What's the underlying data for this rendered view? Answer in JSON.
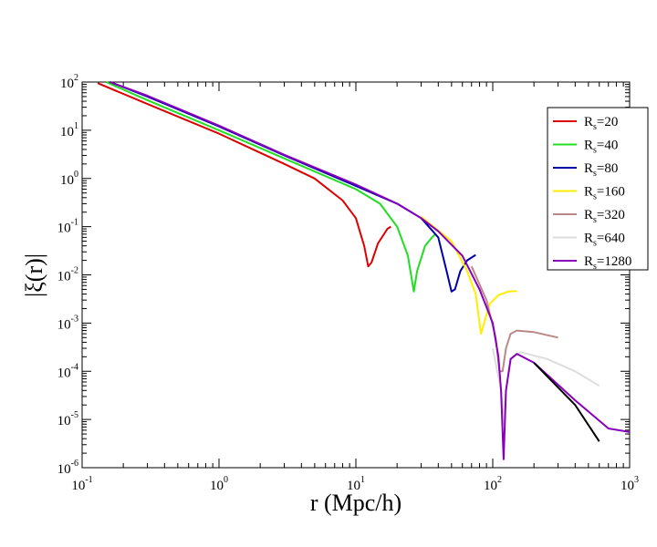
{
  "chart_data": {
    "type": "line",
    "title": "",
    "xlabel": "r (Mpc/h)",
    "ylabel": "|ξ(r)|",
    "xscale": "log",
    "yscale": "log",
    "xlim": [
      0.1,
      1000
    ],
    "ylim": [
      1e-06,
      100
    ],
    "x_ticks": [
      {
        "base": "10",
        "exp": "-1",
        "value": 0.1
      },
      {
        "base": "10",
        "exp": "0",
        "value": 1
      },
      {
        "base": "10",
        "exp": "1",
        "value": 10
      },
      {
        "base": "10",
        "exp": "2",
        "value": 100
      },
      {
        "base": "10",
        "exp": "3",
        "value": 1000
      }
    ],
    "y_ticks": [
      {
        "base": "10",
        "exp": "-6",
        "value": 1e-06
      },
      {
        "base": "10",
        "exp": "-5",
        "value": 1e-05
      },
      {
        "base": "10",
        "exp": "-4",
        "value": 0.0001
      },
      {
        "base": "10",
        "exp": "-3",
        "value": 0.001
      },
      {
        "base": "10",
        "exp": "-2",
        "value": 0.01
      },
      {
        "base": "10",
        "exp": "-1",
        "value": 0.1
      },
      {
        "base": "10",
        "exp": "0",
        "value": 1
      },
      {
        "base": "10",
        "exp": "1",
        "value": 10
      },
      {
        "base": "10",
        "exp": "2",
        "value": 100
      }
    ],
    "legend_position": "top-right",
    "series": [
      {
        "name": "R_s=20",
        "label_main": "R",
        "label_sub": "s",
        "label_rest": "=20",
        "color": "#dd0000",
        "points": [
          [
            0.13,
            95
          ],
          [
            0.3,
            35
          ],
          [
            1,
            8.5
          ],
          [
            3,
            2
          ],
          [
            5,
            1
          ],
          [
            8,
            0.35
          ],
          [
            10,
            0.15
          ],
          [
            11.5,
            0.04
          ],
          [
            12.3,
            0.015
          ],
          [
            13,
            0.018
          ],
          [
            14.5,
            0.045
          ],
          [
            17,
            0.09
          ],
          [
            18,
            0.1
          ]
        ]
      },
      {
        "name": "R_s=40",
        "label_main": "R",
        "label_sub": "s",
        "label_rest": "=40",
        "color": "#22dd22",
        "points": [
          [
            0.15,
            100
          ],
          [
            0.3,
            42
          ],
          [
            1,
            10
          ],
          [
            3,
            2.6
          ],
          [
            10,
            0.6
          ],
          [
            15,
            0.3
          ],
          [
            20,
            0.1
          ],
          [
            24,
            0.025
          ],
          [
            26.5,
            0.0045
          ],
          [
            28,
            0.012
          ],
          [
            32,
            0.04
          ],
          [
            36,
            0.06
          ],
          [
            38,
            0.07
          ]
        ]
      },
      {
        "name": "R_s=80",
        "label_main": "R",
        "label_sub": "s",
        "label_rest": "=80",
        "color": "#0000aa",
        "points": [
          [
            0.16,
            100
          ],
          [
            0.3,
            50
          ],
          [
            1,
            12
          ],
          [
            3,
            3
          ],
          [
            10,
            0.7
          ],
          [
            20,
            0.3
          ],
          [
            30,
            0.15
          ],
          [
            40,
            0.06
          ],
          [
            46,
            0.012
          ],
          [
            50,
            0.0045
          ],
          [
            53,
            0.005
          ],
          [
            58,
            0.012
          ],
          [
            65,
            0.02
          ],
          [
            75,
            0.026
          ]
        ]
      },
      {
        "name": "R_s=160",
        "label_main": "R",
        "label_sub": "s",
        "label_rest": "=160",
        "color": "#ffee00",
        "points": [
          [
            30,
            0.16
          ],
          [
            50,
            0.05
          ],
          [
            65,
            0.012
          ],
          [
            75,
            0.004
          ],
          [
            82,
            0.0006
          ],
          [
            88,
            0.0012
          ],
          [
            95,
            0.0025
          ],
          [
            110,
            0.0038
          ],
          [
            130,
            0.0045
          ],
          [
            150,
            0.0046
          ]
        ]
      },
      {
        "name": "R_s=320",
        "label_main": "R",
        "label_sub": "s",
        "label_rest": "=320",
        "color": "#bb8888",
        "points": [
          [
            70,
            0.015
          ],
          [
            90,
            0.003
          ],
          [
            105,
            0.0005
          ],
          [
            112,
            0.0001
          ],
          [
            118,
            0.0001
          ],
          [
            125,
            0.0003
          ],
          [
            135,
            0.0006
          ],
          [
            150,
            0.0007
          ],
          [
            200,
            0.00065
          ],
          [
            300,
            0.0005
          ]
        ]
      },
      {
        "name": "R_s=640",
        "label_main": "R",
        "label_sub": "s",
        "label_rest": "=640",
        "color": "#dddddd",
        "points": [
          [
            100,
            0.0003
          ],
          [
            115,
            4e-05
          ],
          [
            120,
            8e-06
          ],
          [
            125,
            4e-05
          ],
          [
            135,
            0.00018
          ],
          [
            160,
            0.00025
          ],
          [
            250,
            0.00018
          ],
          [
            400,
            0.0001
          ],
          [
            600,
            5e-05
          ]
        ]
      },
      {
        "name": "R_s=1280",
        "label_main": "R",
        "label_sub": "s",
        "label_rest": "=1280",
        "color": "#8800bb",
        "points": [
          [
            0.16,
            100
          ],
          [
            0.3,
            52
          ],
          [
            1,
            12.5
          ],
          [
            3,
            3.1
          ],
          [
            10,
            0.75
          ],
          [
            20,
            0.3
          ],
          [
            30,
            0.15
          ],
          [
            40,
            0.08
          ],
          [
            60,
            0.025
          ],
          [
            80,
            0.005
          ],
          [
            100,
            0.001
          ],
          [
            110,
            0.0002
          ],
          [
            115,
            4e-05
          ],
          [
            120,
            1.5e-06
          ],
          [
            125,
            4e-05
          ],
          [
            135,
            0.00018
          ],
          [
            150,
            0.00023
          ],
          [
            200,
            0.00015
          ],
          [
            400,
            2.5e-05
          ],
          [
            700,
            6.5e-06
          ],
          [
            1000,
            5.5e-06
          ]
        ]
      },
      {
        "name": "",
        "color": "#000000",
        "in_legend": false,
        "points": [
          [
            200,
            0.00015
          ],
          [
            400,
            2e-05
          ],
          [
            600,
            3.5e-06
          ]
        ]
      }
    ]
  }
}
